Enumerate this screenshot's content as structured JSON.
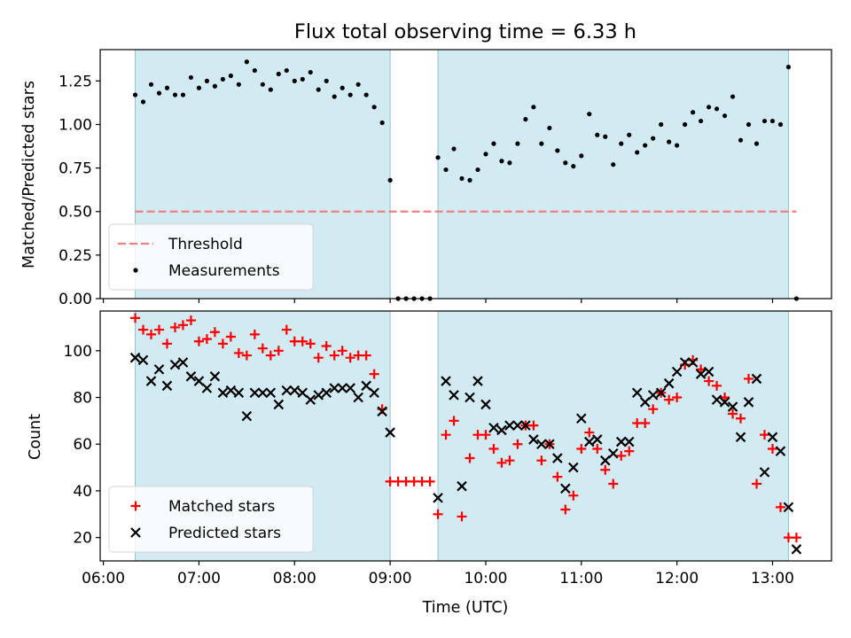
{
  "figure": {
    "title": "Flux total observing time = 6.33 h",
    "xlabel": "Time (UTC)"
  },
  "chart_data": [
    {
      "panel": "top",
      "type": "scatter",
      "ylabel": "Matched/Predicted stars",
      "xlim": [
        "05:58",
        "13:37"
      ],
      "ylim": [
        0,
        1.43
      ],
      "y_ticks": [
        "0.00",
        "0.25",
        "0.50",
        "0.75",
        "1.00",
        "1.25"
      ],
      "grid": false,
      "legend_position": "lower-left",
      "shaded_intervals": [
        [
          "06:20",
          "09:00"
        ],
        [
          "09:30",
          "13:10"
        ]
      ],
      "shade_color": "#add8e6",
      "threshold": {
        "name": "Threshold",
        "value": 0.5,
        "x_start": "06:20",
        "x_end": "13:15",
        "color": "#f08080",
        "style": "dashed"
      },
      "series": [
        {
          "name": "Measurements",
          "marker": "dot",
          "color": "#000000",
          "points": [
            [
              "06:20",
              1.17
            ],
            [
              "06:25",
              1.13
            ],
            [
              "06:30",
              1.23
            ],
            [
              "06:35",
              1.18
            ],
            [
              "06:40",
              1.21
            ],
            [
              "06:45",
              1.17
            ],
            [
              "06:50",
              1.17
            ],
            [
              "06:55",
              1.27
            ],
            [
              "07:00",
              1.21
            ],
            [
              "07:05",
              1.25
            ],
            [
              "07:10",
              1.22
            ],
            [
              "07:15",
              1.26
            ],
            [
              "07:20",
              1.28
            ],
            [
              "07:25",
              1.23
            ],
            [
              "07:30",
              1.36
            ],
            [
              "07:35",
              1.31
            ],
            [
              "07:40",
              1.23
            ],
            [
              "07:45",
              1.2
            ],
            [
              "07:50",
              1.29
            ],
            [
              "07:55",
              1.31
            ],
            [
              "08:00",
              1.25
            ],
            [
              "08:05",
              1.26
            ],
            [
              "08:10",
              1.3
            ],
            [
              "08:15",
              1.2
            ],
            [
              "08:20",
              1.25
            ],
            [
              "08:25",
              1.16
            ],
            [
              "08:30",
              1.21
            ],
            [
              "08:35",
              1.17
            ],
            [
              "08:40",
              1.23
            ],
            [
              "08:45",
              1.17
            ],
            [
              "08:50",
              1.1
            ],
            [
              "08:55",
              1.01
            ],
            [
              "09:00",
              0.68
            ],
            [
              "09:05",
              0.0
            ],
            [
              "09:10",
              0.0
            ],
            [
              "09:15",
              0.0
            ],
            [
              "09:20",
              0.0
            ],
            [
              "09:25",
              0.0
            ],
            [
              "09:30",
              0.81
            ],
            [
              "09:35",
              0.74
            ],
            [
              "09:40",
              0.86
            ],
            [
              "09:45",
              0.69
            ],
            [
              "09:50",
              0.68
            ],
            [
              "09:55",
              0.74
            ],
            [
              "10:00",
              0.83
            ],
            [
              "10:05",
              0.89
            ],
            [
              "10:10",
              0.79
            ],
            [
              "10:15",
              0.78
            ],
            [
              "10:20",
              0.89
            ],
            [
              "10:25",
              1.03
            ],
            [
              "10:30",
              1.1
            ],
            [
              "10:35",
              0.89
            ],
            [
              "10:40",
              0.98
            ],
            [
              "10:45",
              0.85
            ],
            [
              "10:50",
              0.78
            ],
            [
              "10:55",
              0.76
            ],
            [
              "11:00",
              0.82
            ],
            [
              "11:05",
              1.06
            ],
            [
              "11:10",
              0.94
            ],
            [
              "11:15",
              0.93
            ],
            [
              "11:20",
              0.77
            ],
            [
              "11:25",
              0.89
            ],
            [
              "11:30",
              0.94
            ],
            [
              "11:35",
              0.84
            ],
            [
              "11:40",
              0.88
            ],
            [
              "11:45",
              0.92
            ],
            [
              "11:50",
              1.0
            ],
            [
              "11:55",
              0.9
            ],
            [
              "12:00",
              0.88
            ],
            [
              "12:05",
              1.0
            ],
            [
              "12:10",
              1.07
            ],
            [
              "12:15",
              1.02
            ],
            [
              "12:20",
              1.1
            ],
            [
              "12:25",
              1.09
            ],
            [
              "12:30",
              1.05
            ],
            [
              "12:35",
              1.16
            ],
            [
              "12:40",
              0.91
            ],
            [
              "12:45",
              1.0
            ],
            [
              "12:50",
              0.89
            ],
            [
              "12:55",
              1.02
            ],
            [
              "13:00",
              1.02
            ],
            [
              "13:05",
              1.0
            ],
            [
              "13:10",
              1.33
            ],
            [
              "13:15",
              0.0
            ]
          ]
        }
      ]
    },
    {
      "panel": "bottom",
      "type": "scatter",
      "ylabel": "Count",
      "xlim": [
        "05:58",
        "13:37"
      ],
      "ylim": [
        10,
        117
      ],
      "y_ticks": [
        "20",
        "40",
        "60",
        "80",
        "100"
      ],
      "x_ticks": [
        "06:00",
        "07:00",
        "08:00",
        "09:00",
        "10:00",
        "11:00",
        "12:00",
        "13:00"
      ],
      "grid": false,
      "legend_position": "lower-left",
      "shaded_intervals": [
        [
          "06:20",
          "09:00"
        ],
        [
          "09:30",
          "13:10"
        ]
      ],
      "shade_color": "#add8e6",
      "series": [
        {
          "name": "Matched stars",
          "marker": "plus",
          "color": "#ff0000",
          "points": [
            [
              "06:20",
              114
            ],
            [
              "06:25",
              109
            ],
            [
              "06:30",
              107
            ],
            [
              "06:35",
              109
            ],
            [
              "06:40",
              103
            ],
            [
              "06:45",
              110
            ],
            [
              "06:50",
              111
            ],
            [
              "06:55",
              113
            ],
            [
              "07:00",
              104
            ],
            [
              "07:05",
              105
            ],
            [
              "07:10",
              108
            ],
            [
              "07:15",
              103
            ],
            [
              "07:20",
              106
            ],
            [
              "07:25",
              99
            ],
            [
              "07:30",
              98
            ],
            [
              "07:35",
              107
            ],
            [
              "07:40",
              101
            ],
            [
              "07:45",
              98
            ],
            [
              "07:50",
              100
            ],
            [
              "07:55",
              109
            ],
            [
              "08:00",
              104
            ],
            [
              "08:05",
              104
            ],
            [
              "08:10",
              103
            ],
            [
              "08:15",
              97
            ],
            [
              "08:20",
              102
            ],
            [
              "08:25",
              98
            ],
            [
              "08:30",
              100
            ],
            [
              "08:35",
              97
            ],
            [
              "08:40",
              98
            ],
            [
              "08:45",
              98
            ],
            [
              "08:50",
              90
            ],
            [
              "08:55",
              75
            ],
            [
              "09:00",
              44
            ],
            [
              "09:05",
              44
            ],
            [
              "09:10",
              44
            ],
            [
              "09:15",
              44
            ],
            [
              "09:20",
              44
            ],
            [
              "09:25",
              44
            ],
            [
              "09:30",
              30
            ],
            [
              "09:35",
              64
            ],
            [
              "09:40",
              70
            ],
            [
              "09:45",
              29
            ],
            [
              "09:50",
              54
            ],
            [
              "09:55",
              64
            ],
            [
              "10:00",
              64
            ],
            [
              "10:05",
              58
            ],
            [
              "10:10",
              52
            ],
            [
              "10:15",
              53
            ],
            [
              "10:20",
              60
            ],
            [
              "10:25",
              68
            ],
            [
              "10:30",
              68
            ],
            [
              "10:35",
              53
            ],
            [
              "10:40",
              60
            ],
            [
              "10:45",
              46
            ],
            [
              "10:50",
              32
            ],
            [
              "10:55",
              38
            ],
            [
              "11:00",
              58
            ],
            [
              "11:05",
              65
            ],
            [
              "11:10",
              58
            ],
            [
              "11:15",
              49
            ],
            [
              "11:20",
              43
            ],
            [
              "11:25",
              55
            ],
            [
              "11:30",
              57
            ],
            [
              "11:35",
              69
            ],
            [
              "11:40",
              69
            ],
            [
              "11:45",
              75
            ],
            [
              "11:50",
              82
            ],
            [
              "11:55",
              79
            ],
            [
              "12:00",
              80
            ],
            [
              "12:05",
              94
            ],
            [
              "12:10",
              96
            ],
            [
              "12:15",
              92
            ],
            [
              "12:20",
              87
            ],
            [
              "12:25",
              85
            ],
            [
              "12:30",
              80
            ],
            [
              "12:35",
              73
            ],
            [
              "12:40",
              71
            ],
            [
              "12:45",
              88
            ],
            [
              "12:50",
              43
            ],
            [
              "12:55",
              64
            ],
            [
              "13:00",
              58
            ],
            [
              "13:05",
              33
            ],
            [
              "13:10",
              20
            ],
            [
              "13:15",
              20
            ]
          ]
        },
        {
          "name": "Predicted stars",
          "marker": "x",
          "color": "#000000",
          "points": [
            [
              "06:20",
              97
            ],
            [
              "06:25",
              96
            ],
            [
              "06:30",
              87
            ],
            [
              "06:35",
              92
            ],
            [
              "06:40",
              85
            ],
            [
              "06:45",
              94
            ],
            [
              "06:50",
              95
            ],
            [
              "06:55",
              89
            ],
            [
              "07:00",
              87
            ],
            [
              "07:05",
              84
            ],
            [
              "07:10",
              89
            ],
            [
              "07:15",
              82
            ],
            [
              "07:20",
              83
            ],
            [
              "07:25",
              82
            ],
            [
              "07:30",
              72
            ],
            [
              "07:35",
              82
            ],
            [
              "07:40",
              82
            ],
            [
              "07:45",
              82
            ],
            [
              "07:50",
              77
            ],
            [
              "07:55",
              83
            ],
            [
              "08:00",
              83
            ],
            [
              "08:05",
              82
            ],
            [
              "08:10",
              79
            ],
            [
              "08:15",
              81
            ],
            [
              "08:20",
              82
            ],
            [
              "08:25",
              84
            ],
            [
              "08:30",
              84
            ],
            [
              "08:35",
              84
            ],
            [
              "08:40",
              80
            ],
            [
              "08:45",
              85
            ],
            [
              "08:50",
              82
            ],
            [
              "08:55",
              74
            ],
            [
              "09:00",
              65
            ],
            [
              "09:30",
              37
            ],
            [
              "09:35",
              87
            ],
            [
              "09:40",
              81
            ],
            [
              "09:45",
              42
            ],
            [
              "09:50",
              80
            ],
            [
              "09:55",
              87
            ],
            [
              "10:00",
              77
            ],
            [
              "10:05",
              67
            ],
            [
              "10:10",
              66
            ],
            [
              "10:15",
              68
            ],
            [
              "10:20",
              68
            ],
            [
              "10:25",
              68
            ],
            [
              "10:30",
              62
            ],
            [
              "10:35",
              60
            ],
            [
              "10:40",
              60
            ],
            [
              "10:45",
              54
            ],
            [
              "10:50",
              41
            ],
            [
              "10:55",
              50
            ],
            [
              "11:00",
              71
            ],
            [
              "11:05",
              61
            ],
            [
              "11:10",
              62
            ],
            [
              "11:15",
              53
            ],
            [
              "11:20",
              56
            ],
            [
              "11:25",
              61
            ],
            [
              "11:30",
              61
            ],
            [
              "11:35",
              82
            ],
            [
              "11:40",
              78
            ],
            [
              "11:45",
              81
            ],
            [
              "11:50",
              82
            ],
            [
              "11:55",
              86
            ],
            [
              "12:00",
              91
            ],
            [
              "12:05",
              95
            ],
            [
              "12:10",
              95
            ],
            [
              "12:15",
              90
            ],
            [
              "12:20",
              91
            ],
            [
              "12:25",
              79
            ],
            [
              "12:30",
              78
            ],
            [
              "12:35",
              76
            ],
            [
              "12:40",
              63
            ],
            [
              "12:45",
              78
            ],
            [
              "12:50",
              88
            ],
            [
              "12:55",
              48
            ],
            [
              "13:00",
              63
            ],
            [
              "13:05",
              57
            ],
            [
              "13:10",
              33
            ],
            [
              "13:15",
              15
            ]
          ]
        }
      ]
    }
  ]
}
